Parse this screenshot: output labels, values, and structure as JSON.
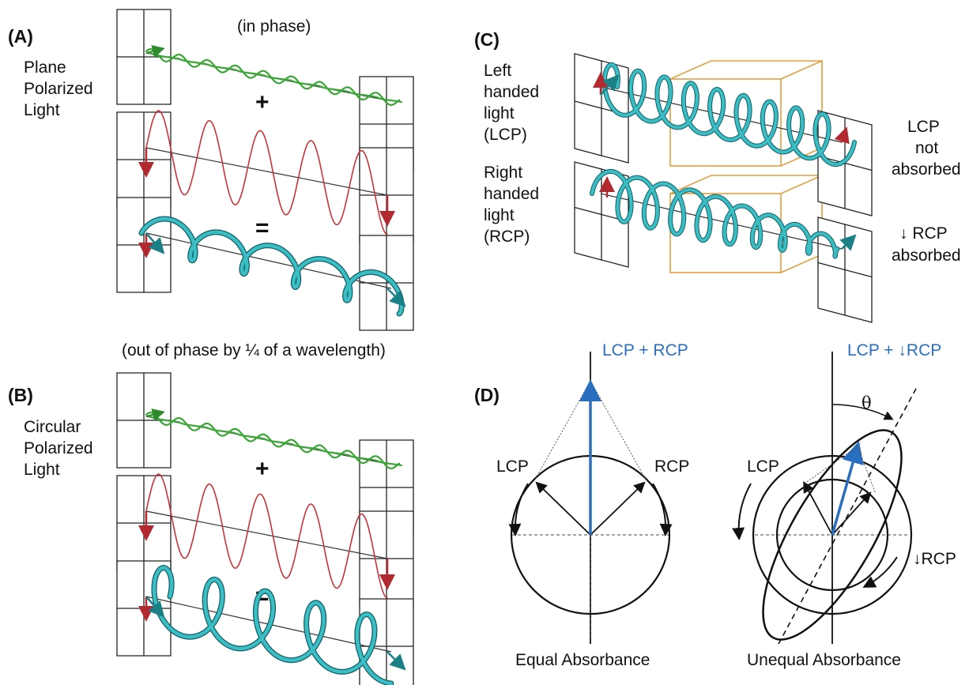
{
  "panelA": {
    "label": "(A)",
    "title_lines": [
      "Plane",
      "Polarized",
      "Light"
    ],
    "phase_note": "(in phase)",
    "plus": "+",
    "equals": "="
  },
  "panelB": {
    "label": "(B)",
    "title_lines": [
      "Circular",
      "Polarized",
      "Light"
    ],
    "phase_note": "(out of phase by ¼ of a wavelength)",
    "plus": "+",
    "equals": "="
  },
  "panelC": {
    "label": "(C)",
    "lcp_lines": [
      "Left",
      "handed",
      "light",
      "(LCP)"
    ],
    "rcp_lines": [
      "Right",
      "handed",
      "light",
      "(RCP)"
    ],
    "lcp_result_lines": [
      "LCP",
      "not",
      "absorbed"
    ],
    "rcp_result_lines": [
      "↓ RCP",
      "absorbed"
    ]
  },
  "panelD": {
    "label": "(D)",
    "left": {
      "top_label": "LCP + RCP",
      "lcp": "LCP",
      "rcp": "RCP",
      "caption": "Equal Absorbance"
    },
    "right": {
      "top_label": "LCP + ↓RCP",
      "theta": "θ",
      "lcp": "LCP",
      "rcp": "↓RCP",
      "caption": "Unequal Absorbance"
    }
  },
  "colors": {
    "green_wave": "#3aa636",
    "red_wave": "#c8333a",
    "cyan_wave": "#3bbdc4",
    "blue_vector": "#2a6fbf",
    "orange_box": "#e0a040",
    "grid_stroke": "#222222"
  }
}
